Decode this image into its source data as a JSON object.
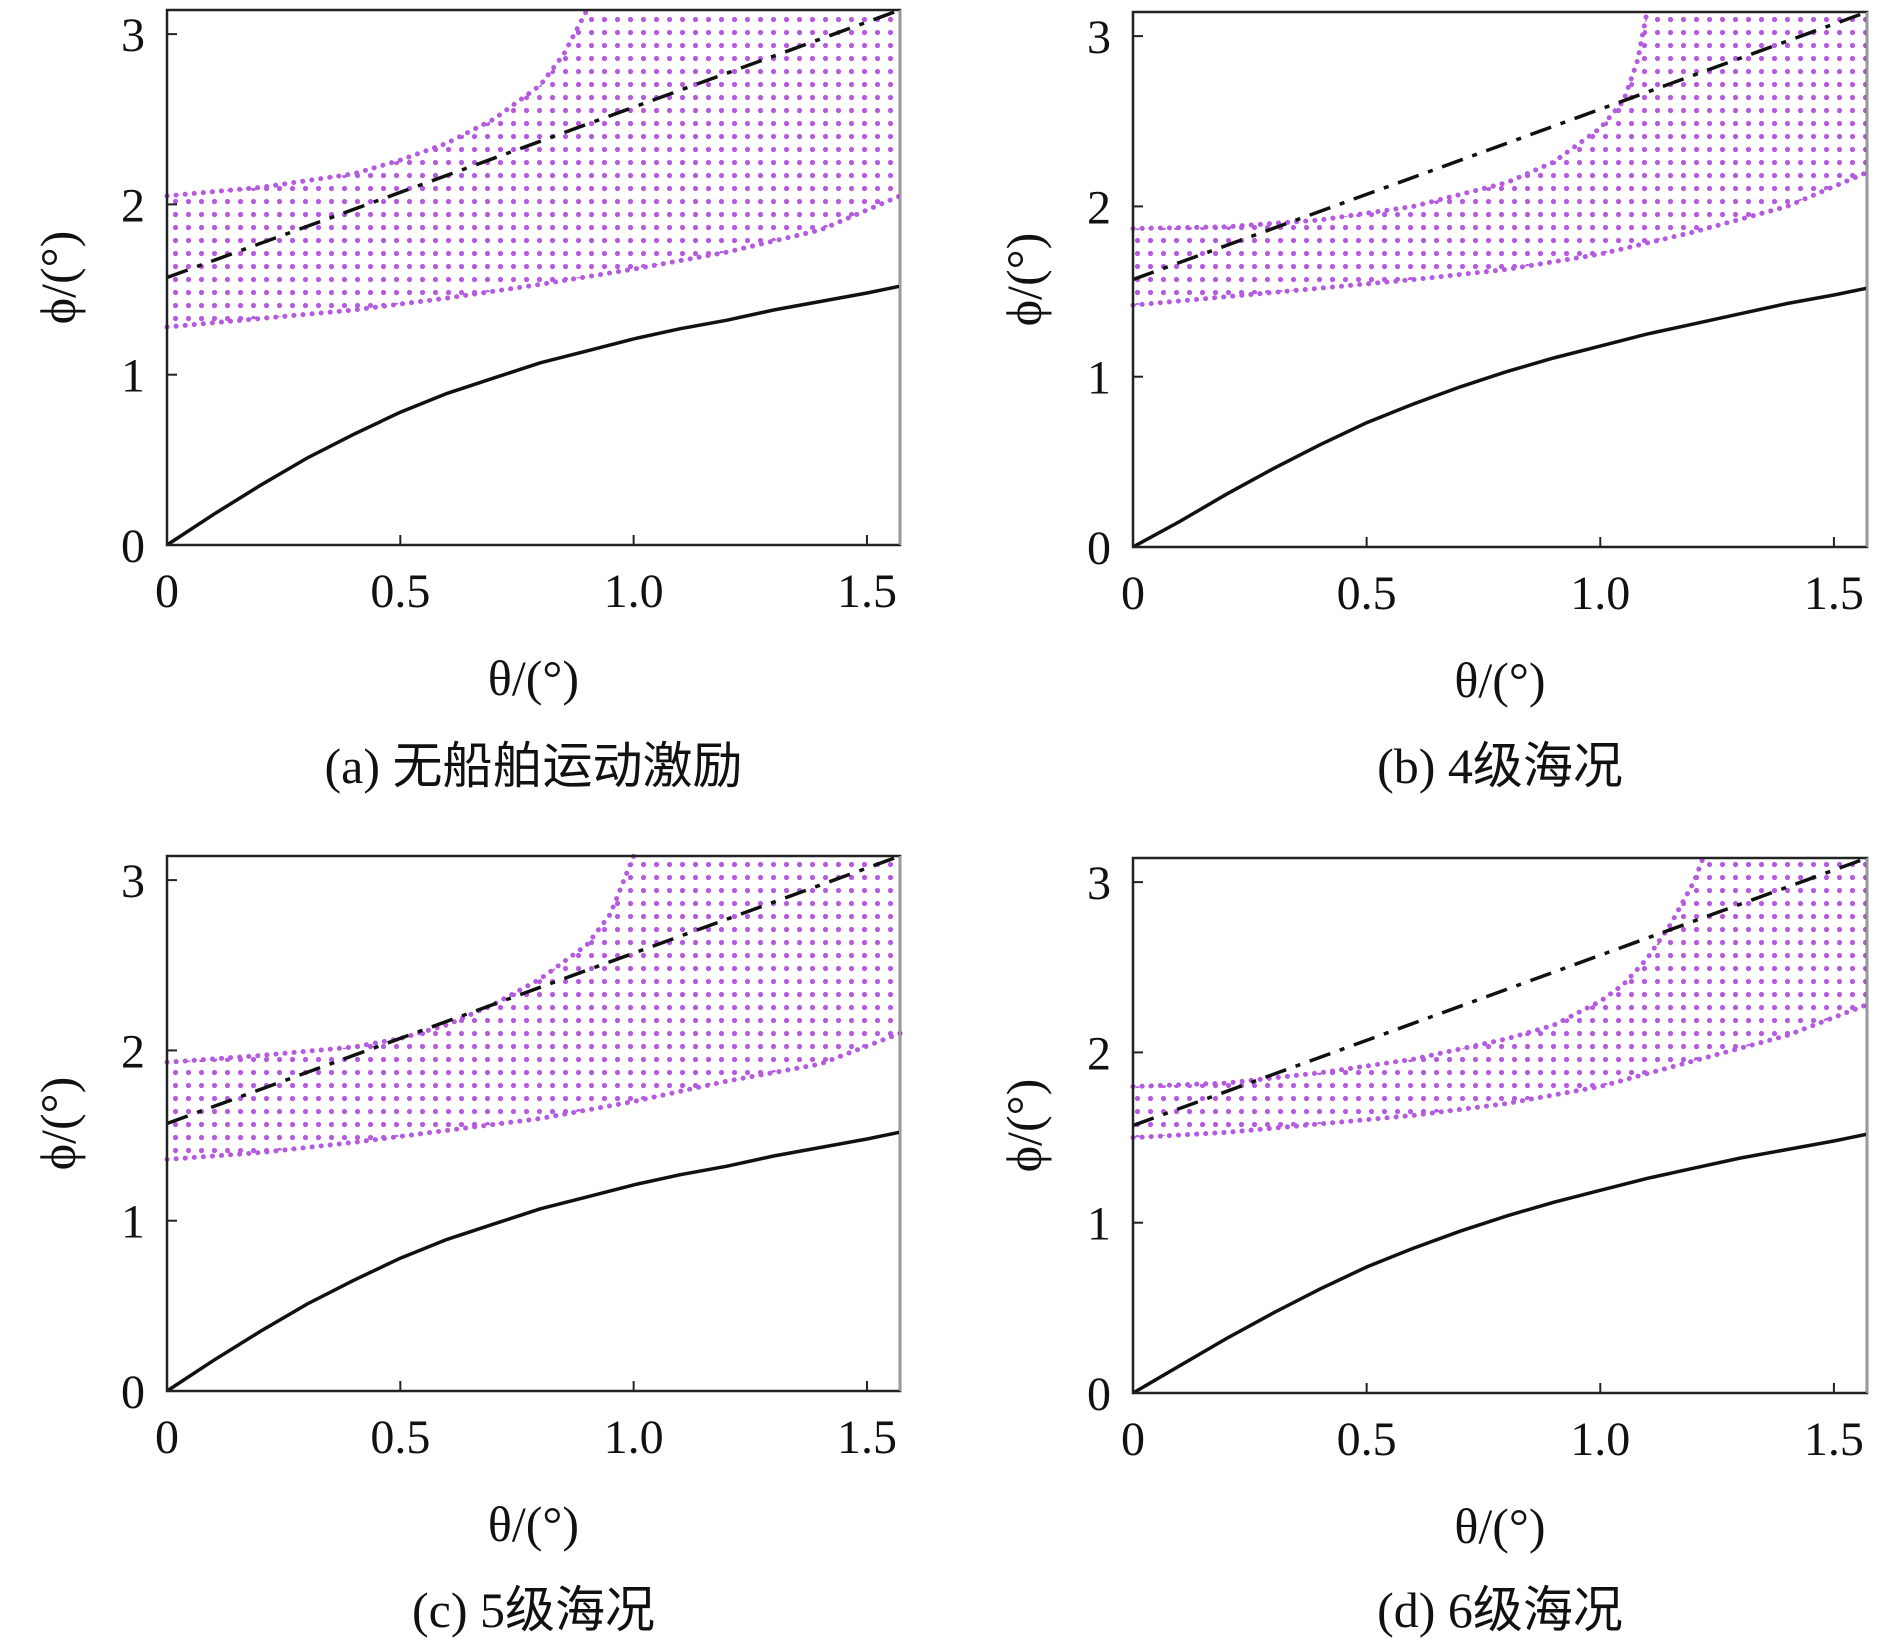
{
  "colors": {
    "region": "#b45be0",
    "solid_line": "#111111",
    "dashdot_line": "#111111"
  },
  "chart_data": [
    {
      "type": "line",
      "panel": "a",
      "caption": "(a) 无船舶运动激励",
      "xlabel": "θ/(°)",
      "ylabel": "ϕ/(°)",
      "xlim": [
        0,
        1.5708
      ],
      "ylim": [
        0,
        3.1416
      ],
      "xticks": [
        "0",
        "0.5",
        "1.0",
        "1.5"
      ],
      "xtick_values": [
        0,
        0.5,
        1.0,
        1.5
      ],
      "yticks": [
        "0",
        "1",
        "2",
        "3"
      ],
      "ytick_values": [
        0,
        1,
        2,
        3
      ],
      "grid": false,
      "series": [
        {
          "name": "solid curve",
          "style": "solid",
          "x": [
            0,
            0.1,
            0.2,
            0.3,
            0.4,
            0.5,
            0.6,
            0.7,
            0.8,
            0.9,
            1.0,
            1.1,
            1.2,
            1.3,
            1.4,
            1.5,
            1.5708
          ],
          "y": [
            0,
            0.18,
            0.35,
            0.51,
            0.65,
            0.78,
            0.89,
            0.98,
            1.07,
            1.14,
            1.21,
            1.27,
            1.32,
            1.38,
            1.43,
            1.48,
            1.52
          ]
        },
        {
          "name": "dash-dot line",
          "style": "dashdot",
          "x": [
            0,
            1.5708
          ],
          "y": [
            1.5708,
            3.1416
          ]
        }
      ],
      "region": {
        "name": "dotted region",
        "style": "dotted-fill",
        "lower": {
          "x": [
            0,
            0.2,
            0.4,
            0.6,
            0.8,
            1.0,
            1.2,
            1.4,
            1.5708
          ],
          "y": [
            1.28,
            1.33,
            1.38,
            1.45,
            1.53,
            1.62,
            1.72,
            1.85,
            2.05
          ]
        },
        "upper": {
          "x": [
            0,
            0.2,
            0.4,
            0.5,
            0.6,
            0.7,
            0.8,
            0.85,
            0.9
          ],
          "y": [
            2.05,
            2.1,
            2.18,
            2.26,
            2.36,
            2.5,
            2.7,
            2.88,
            3.1416
          ]
        }
      }
    },
    {
      "type": "line",
      "panel": "b",
      "caption": "(b) 4级海况",
      "xlabel": "θ/(°)",
      "ylabel": "ϕ/(°)",
      "xlim": [
        0,
        1.5708
      ],
      "ylim": [
        0,
        3.1416
      ],
      "xticks": [
        "0",
        "0.5",
        "1.0",
        "1.5"
      ],
      "xtick_values": [
        0,
        0.5,
        1.0,
        1.5
      ],
      "yticks": [
        "0",
        "1",
        "2",
        "3"
      ],
      "ytick_values": [
        0,
        1,
        2,
        3
      ],
      "grid": false,
      "series": [
        {
          "name": "solid curve",
          "style": "solid",
          "x": [
            0,
            0.1,
            0.2,
            0.3,
            0.4,
            0.5,
            0.6,
            0.7,
            0.8,
            0.9,
            1.0,
            1.1,
            1.2,
            1.3,
            1.4,
            1.5,
            1.5708
          ],
          "y": [
            0,
            0.15,
            0.31,
            0.46,
            0.6,
            0.73,
            0.84,
            0.94,
            1.03,
            1.11,
            1.18,
            1.25,
            1.31,
            1.37,
            1.43,
            1.48,
            1.52
          ]
        },
        {
          "name": "dash-dot line",
          "style": "dashdot",
          "x": [
            0,
            1.5708
          ],
          "y": [
            1.5708,
            3.1416
          ]
        }
      ],
      "region": {
        "name": "dotted region",
        "style": "dotted-fill",
        "lower": {
          "x": [
            0,
            0.2,
            0.4,
            0.6,
            0.8,
            1.0,
            1.2,
            1.4,
            1.5708
          ],
          "y": [
            1.42,
            1.47,
            1.52,
            1.57,
            1.63,
            1.72,
            1.85,
            2.0,
            2.2
          ]
        },
        "upper": {
          "x": [
            0,
            0.2,
            0.4,
            0.6,
            0.8,
            0.9,
            1.0,
            1.05,
            1.08,
            1.1
          ],
          "y": [
            1.87,
            1.88,
            1.92,
            2.0,
            2.14,
            2.26,
            2.46,
            2.62,
            2.86,
            3.1416
          ]
        }
      }
    },
    {
      "type": "line",
      "panel": "c",
      "caption": "(c) 5级海况",
      "xlabel": "θ/(°)",
      "ylabel": "ϕ/(°)",
      "xlim": [
        0,
        1.5708
      ],
      "ylim": [
        0,
        3.1416
      ],
      "xticks": [
        "0",
        "0.5",
        "1.0",
        "1.5"
      ],
      "xtick_values": [
        0,
        0.5,
        1.0,
        1.5
      ],
      "yticks": [
        "0",
        "1",
        "2",
        "3"
      ],
      "ytick_values": [
        0,
        1,
        2,
        3
      ],
      "grid": false,
      "series": [
        {
          "name": "solid curve",
          "style": "solid",
          "x": [
            0,
            0.1,
            0.2,
            0.3,
            0.4,
            0.5,
            0.6,
            0.7,
            0.8,
            0.9,
            1.0,
            1.1,
            1.2,
            1.3,
            1.4,
            1.5,
            1.5708
          ],
          "y": [
            0,
            0.18,
            0.35,
            0.51,
            0.65,
            0.78,
            0.89,
            0.98,
            1.07,
            1.14,
            1.21,
            1.27,
            1.32,
            1.38,
            1.43,
            1.48,
            1.52
          ]
        },
        {
          "name": "dash-dot line",
          "style": "dashdot",
          "x": [
            0,
            1.5708
          ],
          "y": [
            1.5708,
            3.1416
          ]
        }
      ],
      "region": {
        "name": "dotted region",
        "style": "dotted-fill",
        "lower": {
          "x": [
            0,
            0.2,
            0.4,
            0.6,
            0.8,
            1.0,
            1.2,
            1.4,
            1.5708
          ],
          "y": [
            1.36,
            1.4,
            1.46,
            1.53,
            1.6,
            1.7,
            1.82,
            1.92,
            2.1
          ]
        },
        "upper": {
          "x": [
            0,
            0.2,
            0.4,
            0.5,
            0.6,
            0.7,
            0.8,
            0.9,
            0.95,
            1.0
          ],
          "y": [
            1.93,
            1.97,
            2.02,
            2.07,
            2.15,
            2.27,
            2.42,
            2.62,
            2.8,
            3.1416
          ]
        }
      }
    },
    {
      "type": "line",
      "panel": "d",
      "caption": "(d) 6级海况",
      "xlabel": "θ/(°)",
      "ylabel": "ϕ/(°)",
      "xlim": [
        0,
        1.5708
      ],
      "ylim": [
        0,
        3.1416
      ],
      "xticks": [
        "0",
        "0.5",
        "1.0",
        "1.5"
      ],
      "xtick_values": [
        0,
        0.5,
        1.0,
        1.5
      ],
      "yticks": [
        "0",
        "1",
        "2",
        "3"
      ],
      "ytick_values": [
        0,
        1,
        2,
        3
      ],
      "grid": false,
      "series": [
        {
          "name": "solid curve",
          "style": "solid",
          "x": [
            0,
            0.1,
            0.2,
            0.3,
            0.4,
            0.5,
            0.6,
            0.7,
            0.8,
            0.9,
            1.0,
            1.1,
            1.2,
            1.3,
            1.4,
            1.5,
            1.5708
          ],
          "y": [
            0,
            0.16,
            0.32,
            0.47,
            0.61,
            0.74,
            0.85,
            0.95,
            1.04,
            1.12,
            1.19,
            1.26,
            1.32,
            1.38,
            1.43,
            1.48,
            1.52
          ]
        },
        {
          "name": "dash-dot line",
          "style": "dashdot",
          "x": [
            0,
            1.5708
          ],
          "y": [
            1.5708,
            3.1416
          ]
        }
      ],
      "region": {
        "name": "dotted region",
        "style": "dotted-fill",
        "lower": {
          "x": [
            0,
            0.2,
            0.4,
            0.6,
            0.8,
            1.0,
            1.2,
            1.4,
            1.5708
          ],
          "y": [
            1.5,
            1.53,
            1.58,
            1.63,
            1.7,
            1.8,
            1.95,
            2.1,
            2.28
          ]
        },
        "upper": {
          "x": [
            0,
            0.2,
            0.4,
            0.6,
            0.8,
            0.9,
            1.0,
            1.05,
            1.1,
            1.15,
            1.2,
            1.22
          ],
          "y": [
            1.8,
            1.82,
            1.88,
            1.96,
            2.08,
            2.16,
            2.3,
            2.4,
            2.55,
            2.75,
            3.0,
            3.1416
          ]
        }
      }
    }
  ]
}
